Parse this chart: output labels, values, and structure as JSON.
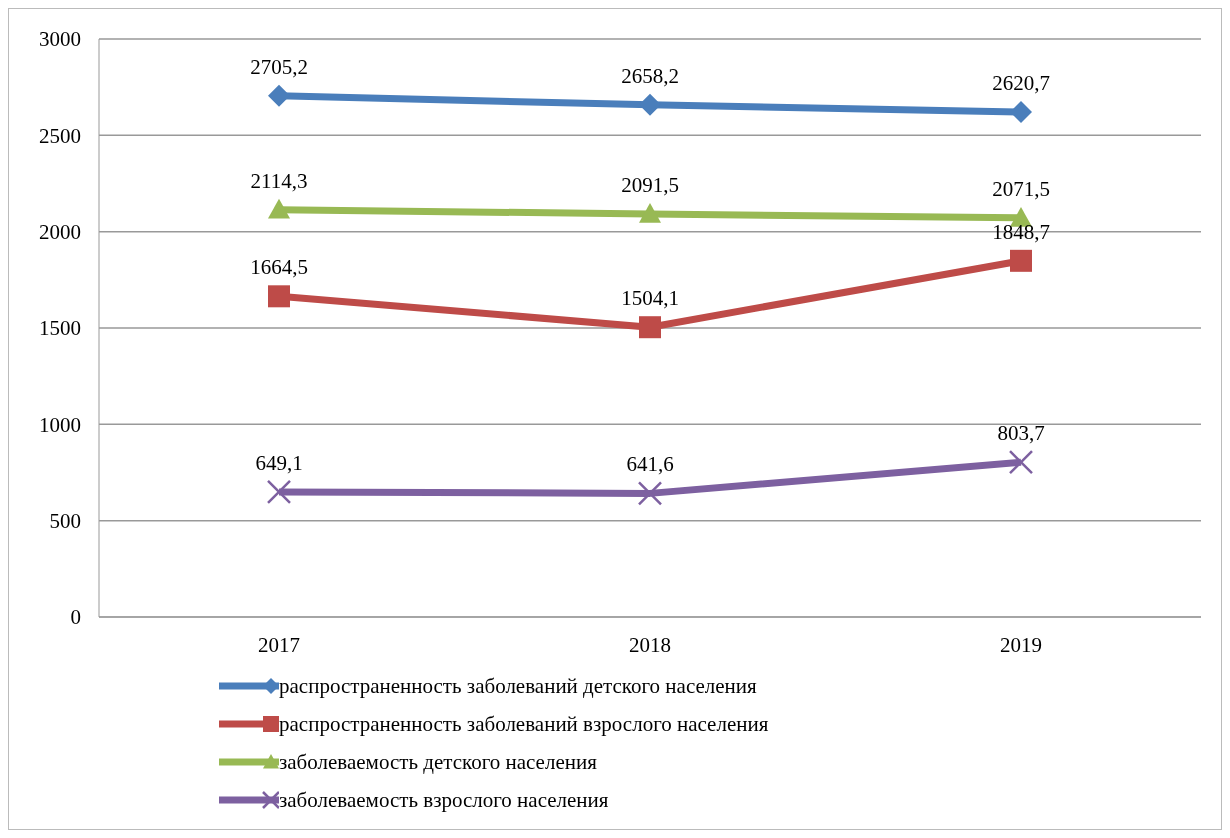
{
  "chart_data": {
    "type": "line",
    "categories": [
      "2017",
      "2018",
      "2019"
    ],
    "series": [
      {
        "name": "распространенность заболеваний детского населения",
        "color": "#4a7ebb",
        "marker": "diamond",
        "values": [
          2705.2,
          2658.2,
          2620.7
        ],
        "value_labels": [
          "2705,2",
          "2658,2",
          "2620,7"
        ]
      },
      {
        "name": "распространенность заболеваний взрослого населения",
        "color": "#be4b48",
        "marker": "square",
        "values": [
          1664.5,
          1504.1,
          1848.7
        ],
        "value_labels": [
          "1664,5",
          "1504,1",
          "1848,7"
        ]
      },
      {
        "name": "заболеваемость детского населения",
        "color": "#98b954",
        "marker": "triangle",
        "values": [
          2114.3,
          2091.5,
          2071.5
        ],
        "value_labels": [
          "2114,3",
          "2091,5",
          "2071,5"
        ]
      },
      {
        "name": "заболеваемость взрослого населения",
        "color": "#7d60a0",
        "marker": "cross",
        "values": [
          649.1,
          641.6,
          803.7
        ],
        "value_labels": [
          "649,1",
          "641,6",
          "803,7"
        ]
      }
    ],
    "ylim": [
      0,
      3000
    ],
    "yticks": [
      0,
      500,
      1000,
      1500,
      2000,
      2500,
      3000
    ],
    "grid": "y",
    "legend": "bottom",
    "line_style": "solid"
  }
}
